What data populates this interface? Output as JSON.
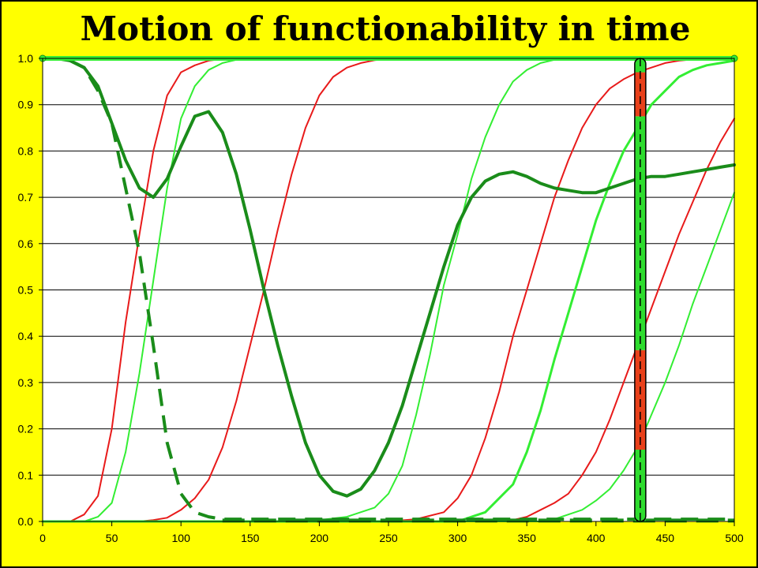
{
  "chart_data": {
    "type": "line",
    "title": "Motion of functionability in time",
    "xlabel": "",
    "ylabel": "",
    "xlim": [
      0,
      500
    ],
    "ylim": [
      0,
      1
    ],
    "grid": true,
    "legend": "none",
    "x_ticks": [
      "0",
      "50",
      "100",
      "150",
      "200",
      "250",
      "300",
      "350",
      "400",
      "450",
      "500"
    ],
    "y_ticks": [
      "0.0",
      "0.1",
      "0.2",
      "0.3",
      "0.4",
      "0.5",
      "0.6",
      "0.7",
      "0.8",
      "0.9",
      "1.0"
    ],
    "colors": {
      "background": "#ffff00",
      "plot_area": "#ffffff",
      "red": "#e81a1a",
      "light_green": "#33ee33",
      "dark_green": "#1a8c1a",
      "bar_green": "#2edc2e",
      "bar_red": "#e8401a"
    },
    "series": [
      {
        "color": "red",
        "width": 2,
        "x": [
          0,
          20,
          30,
          40,
          50,
          60,
          70,
          80,
          90,
          100,
          110,
          120,
          130,
          140,
          150,
          500
        ],
        "y": [
          0,
          0,
          0.015,
          0.055,
          0.2,
          0.43,
          0.62,
          0.8,
          0.92,
          0.97,
          0.985,
          0.995,
          0.999,
          1,
          1,
          1
        ]
      },
      {
        "color": "light_green",
        "width": 2,
        "x": [
          0,
          30,
          40,
          50,
          60,
          70,
          80,
          90,
          100,
          110,
          120,
          130,
          140,
          150,
          160,
          500
        ],
        "y": [
          0,
          0,
          0.01,
          0.04,
          0.15,
          0.32,
          0.52,
          0.72,
          0.87,
          0.94,
          0.975,
          0.99,
          0.997,
          1,
          1,
          1
        ]
      },
      {
        "color": "red",
        "width": 2,
        "x": [
          0,
          70,
          80,
          90,
          100,
          110,
          120,
          130,
          140,
          150,
          160,
          170,
          180,
          190,
          200,
          210,
          220,
          230,
          240,
          250,
          260,
          270,
          500
        ],
        "y": [
          0,
          0,
          0.003,
          0.008,
          0.025,
          0.05,
          0.09,
          0.16,
          0.26,
          0.38,
          0.5,
          0.63,
          0.75,
          0.85,
          0.92,
          0.96,
          0.98,
          0.99,
          0.996,
          0.999,
          1,
          1,
          1
        ]
      },
      {
        "color": "light_green",
        "width": 2,
        "x": [
          0,
          180,
          200,
          220,
          240,
          250,
          260,
          270,
          280,
          290,
          300,
          310,
          320,
          330,
          340,
          350,
          360,
          370,
          380,
          390,
          400,
          500
        ],
        "y": [
          0,
          0,
          0.003,
          0.01,
          0.03,
          0.06,
          0.12,
          0.23,
          0.36,
          0.51,
          0.62,
          0.74,
          0.83,
          0.9,
          0.95,
          0.975,
          0.99,
          0.997,
          1,
          1,
          1,
          1
        ]
      },
      {
        "color": "red",
        "width": 2,
        "x": [
          0,
          250,
          270,
          290,
          300,
          310,
          320,
          330,
          340,
          350,
          360,
          370,
          380,
          390,
          400,
          410,
          420,
          430,
          440,
          450,
          460,
          470,
          480,
          500
        ],
        "y": [
          0,
          0,
          0.005,
          0.02,
          0.05,
          0.1,
          0.18,
          0.28,
          0.4,
          0.5,
          0.6,
          0.7,
          0.78,
          0.85,
          0.9,
          0.935,
          0.955,
          0.97,
          0.98,
          0.99,
          0.995,
          0.998,
          1,
          1
        ]
      },
      {
        "color": "light_green",
        "width": 3,
        "x": [
          0,
          300,
          320,
          340,
          350,
          360,
          370,
          380,
          390,
          400,
          410,
          420,
          430,
          440,
          450,
          460,
          470,
          480,
          490,
          500
        ],
        "y": [
          0,
          0,
          0.02,
          0.08,
          0.15,
          0.24,
          0.35,
          0.45,
          0.55,
          0.65,
          0.73,
          0.8,
          0.85,
          0.9,
          0.93,
          0.96,
          0.975,
          0.985,
          0.99,
          0.995
        ]
      },
      {
        "color": "red",
        "width": 2,
        "x": [
          0,
          330,
          340,
          350,
          360,
          370,
          380,
          390,
          400,
          410,
          420,
          430,
          440,
          450,
          460,
          470,
          480,
          490,
          500
        ],
        "y": [
          0,
          0,
          0.003,
          0.01,
          0.025,
          0.04,
          0.06,
          0.1,
          0.15,
          0.22,
          0.3,
          0.38,
          0.46,
          0.54,
          0.62,
          0.69,
          0.76,
          0.82,
          0.87
        ]
      },
      {
        "color": "light_green",
        "width": 2,
        "x": [
          0,
          360,
          370,
          380,
          390,
          400,
          410,
          420,
          430,
          440,
          450,
          460,
          470,
          480,
          490,
          500
        ],
        "y": [
          0,
          0,
          0.005,
          0.015,
          0.025,
          0.045,
          0.07,
          0.11,
          0.16,
          0.23,
          0.3,
          0.38,
          0.47,
          0.55,
          0.63,
          0.71
        ]
      },
      {
        "color": "dark_green",
        "width": 4,
        "x": [
          0,
          10,
          20,
          30,
          40,
          50,
          60,
          70,
          80,
          90,
          100,
          110,
          120,
          130,
          140,
          150,
          160,
          170,
          180,
          190,
          200,
          210,
          220,
          230,
          240,
          250,
          260,
          270,
          280,
          290,
          300,
          310,
          320,
          330,
          340,
          350,
          360,
          370,
          380,
          390,
          400,
          410,
          420,
          430,
          440,
          450,
          460,
          470,
          480,
          490,
          500
        ],
        "y": [
          1,
          1,
          0.995,
          0.98,
          0.94,
          0.86,
          0.78,
          0.72,
          0.7,
          0.74,
          0.81,
          0.875,
          0.885,
          0.84,
          0.75,
          0.63,
          0.5,
          0.38,
          0.27,
          0.17,
          0.1,
          0.065,
          0.055,
          0.07,
          0.11,
          0.17,
          0.25,
          0.35,
          0.45,
          0.55,
          0.64,
          0.7,
          0.735,
          0.75,
          0.755,
          0.745,
          0.73,
          0.72,
          0.715,
          0.71,
          0.71,
          0.72,
          0.73,
          0.74,
          0.745,
          0.745,
          0.75,
          0.755,
          0.76,
          0.765,
          0.77
        ]
      },
      {
        "color": "dark_green",
        "width": 4,
        "dash": true,
        "x": [
          0,
          10,
          20,
          30,
          40,
          50,
          60,
          70,
          80,
          90,
          100,
          110,
          120,
          130,
          500
        ],
        "y": [
          1,
          1,
          0.995,
          0.98,
          0.93,
          0.86,
          0.72,
          0.58,
          0.38,
          0.17,
          0.06,
          0.02,
          0.01,
          0.005,
          0.005
        ]
      },
      {
        "color": "light_green",
        "width": 6,
        "x": [
          0,
          500
        ],
        "y": [
          1,
          1
        ]
      }
    ],
    "bar": {
      "x": 432,
      "segments": [
        {
          "from": 0,
          "to": 0.155,
          "color": "bar_green"
        },
        {
          "from": 0.155,
          "to": 0.37,
          "color": "bar_red"
        },
        {
          "from": 0.37,
          "to": 0.875,
          "color": "bar_green"
        },
        {
          "from": 0.875,
          "to": 0.97,
          "color": "bar_red"
        },
        {
          "from": 0.97,
          "to": 1.0,
          "color": "bar_green"
        }
      ]
    }
  }
}
